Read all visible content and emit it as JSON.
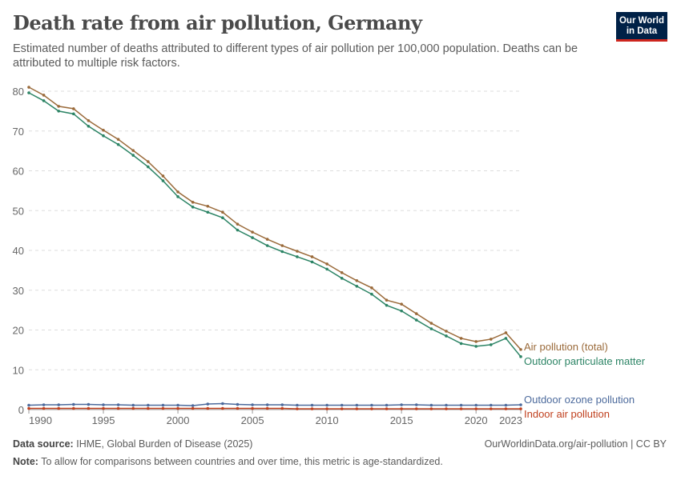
{
  "header": {
    "title": "Death rate from air pollution, Germany",
    "subtitle": "Estimated number of deaths attributed to different types of air pollution per 100,000 population. Deaths can be attributed to multiple risk factors.",
    "logo_text": "Our World in Data"
  },
  "footer": {
    "source_label": "Data source:",
    "source": "IHME, Global Burden of Disease (2025)",
    "url_license": "OurWorldinData.org/air-pollution | CC BY",
    "note_label": "Note:",
    "note": "To allow for comparisons between countries and over time, this metric is age-standardized."
  },
  "chart_data": {
    "type": "line",
    "title": "Death rate from air pollution, Germany",
    "xlim": [
      1990,
      2023
    ],
    "ylim": [
      0,
      80
    ],
    "x_ticks": [
      "1990",
      "1995",
      "2000",
      "2005",
      "2010",
      "2015",
      "2020",
      "2023"
    ],
    "y_ticks": [
      "0",
      "10",
      "20",
      "30",
      "40",
      "50",
      "60",
      "70",
      "80"
    ],
    "grid": "horizontal dashed",
    "legend": "right, end-of-line labels",
    "x": [
      1990,
      1991,
      1992,
      1993,
      1994,
      1995,
      1996,
      1997,
      1998,
      1999,
      2000,
      2001,
      2002,
      2003,
      2004,
      2005,
      2006,
      2007,
      2008,
      2009,
      2010,
      2011,
      2012,
      2013,
      2014,
      2015,
      2016,
      2017,
      2018,
      2019,
      2020,
      2021,
      2022,
      2023
    ],
    "series": [
      {
        "name": "Air pollution (total)",
        "color": "#9a6a3a",
        "values": [
          81.0,
          79.0,
          76.2,
          75.6,
          72.6,
          70.2,
          67.9,
          65.1,
          62.3,
          58.7,
          54.7,
          52.1,
          51.1,
          49.6,
          46.6,
          44.6,
          42.8,
          41.2,
          39.8,
          38.4,
          36.6,
          34.4,
          32.4,
          30.6,
          27.5,
          26.5,
          24.1,
          21.7,
          19.7,
          17.9,
          17.1,
          17.7,
          19.3,
          15.1
        ]
      },
      {
        "name": "Outdoor particulate matter",
        "color": "#2c8465",
        "values": [
          79.6,
          77.6,
          75.0,
          74.3,
          71.2,
          68.8,
          66.6,
          63.9,
          61.0,
          57.5,
          53.5,
          50.9,
          49.6,
          48.2,
          45.1,
          43.2,
          41.2,
          39.7,
          38.4,
          37.1,
          35.3,
          33.0,
          31.0,
          29.0,
          26.2,
          24.8,
          22.5,
          20.3,
          18.5,
          16.6,
          15.9,
          16.3,
          17.9,
          13.3
        ]
      },
      {
        "name": "Outdoor ozone pollution",
        "color": "#4c6a9c",
        "values": [
          1.1,
          1.2,
          1.2,
          1.3,
          1.3,
          1.2,
          1.2,
          1.1,
          1.1,
          1.1,
          1.1,
          1.0,
          1.4,
          1.5,
          1.3,
          1.2,
          1.2,
          1.2,
          1.1,
          1.1,
          1.1,
          1.1,
          1.1,
          1.1,
          1.1,
          1.2,
          1.2,
          1.1,
          1.1,
          1.1,
          1.1,
          1.1,
          1.1,
          1.2
        ]
      },
      {
        "name": "Indoor air pollution",
        "color": "#c0401e",
        "values": [
          0.3,
          0.3,
          0.3,
          0.3,
          0.3,
          0.3,
          0.3,
          0.3,
          0.3,
          0.3,
          0.3,
          0.3,
          0.3,
          0.3,
          0.3,
          0.3,
          0.3,
          0.3,
          0.2,
          0.2,
          0.2,
          0.2,
          0.2,
          0.2,
          0.2,
          0.2,
          0.2,
          0.2,
          0.2,
          0.2,
          0.2,
          0.2,
          0.2,
          0.2
        ]
      }
    ]
  }
}
